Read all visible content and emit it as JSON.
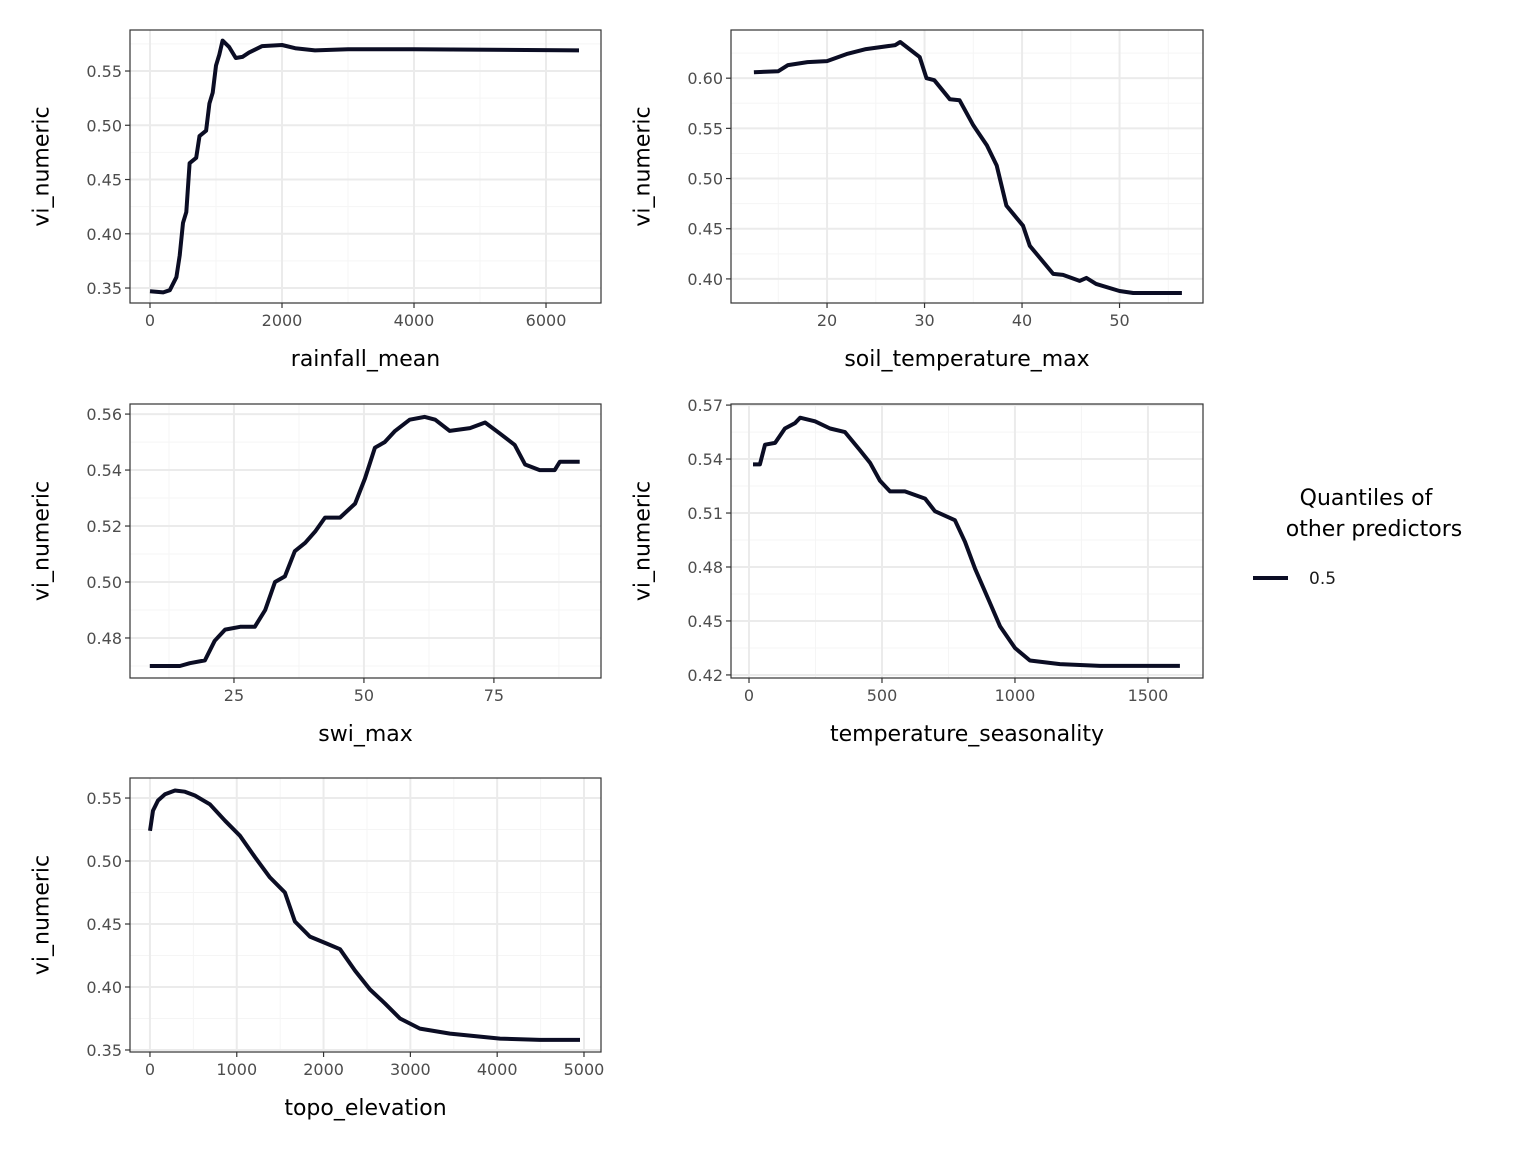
{
  "chart_data": [
    {
      "type": "line",
      "xlabel": "rainfall_mean",
      "ylabel": "vi_numeric",
      "xlim": [
        -303,
        6833
      ],
      "ylim": [
        0.3362,
        0.5878
      ],
      "xticks": [
        0,
        2000,
        4000,
        6000
      ],
      "xtick_labels": [
        "0",
        "2000",
        "4000",
        "6000"
      ],
      "yticks": [
        0.35,
        0.4,
        0.45,
        0.5,
        0.55
      ],
      "ytick_labels": [
        "0.35",
        "0.40",
        "0.45",
        "0.50",
        "0.55"
      ],
      "x": [
        0,
        200,
        300,
        400,
        450,
        500,
        550,
        600,
        700,
        750,
        850,
        900,
        950,
        1000,
        1050,
        1100,
        1200,
        1300,
        1400,
        1500,
        1700,
        2000,
        2200,
        2500,
        3000,
        4000,
        6500
      ],
      "y": [
        0.347,
        0.346,
        0.348,
        0.36,
        0.38,
        0.41,
        0.42,
        0.465,
        0.47,
        0.49,
        0.495,
        0.52,
        0.53,
        0.555,
        0.565,
        0.578,
        0.572,
        0.562,
        0.563,
        0.567,
        0.573,
        0.574,
        0.571,
        0.569,
        0.57,
        0.57,
        0.569
      ]
    },
    {
      "type": "line",
      "xlabel": "soil_temperature_max",
      "ylabel": "vi_numeric",
      "xlim": [
        10.15,
        58.56
      ],
      "ylim": [
        0.376,
        0.648
      ],
      "xticks": [
        20,
        30,
        40,
        50
      ],
      "xtick_labels": [
        "20",
        "30",
        "40",
        "50"
      ],
      "yticks": [
        0.4,
        0.45,
        0.5,
        0.55,
        0.6
      ],
      "ytick_labels": [
        "0.40",
        "0.45",
        "0.50",
        "0.55",
        "0.60"
      ],
      "x": [
        12.5,
        15,
        16,
        18,
        20,
        22,
        24,
        27,
        27.5,
        29.5,
        30.2,
        31,
        32.6,
        33.6,
        35,
        36.4,
        37.4,
        38.4,
        40.1,
        40.8,
        43.2,
        44.2,
        45.9,
        46.6,
        47.6,
        50,
        51.4,
        56.4
      ],
      "y": [
        0.606,
        0.607,
        0.613,
        0.616,
        0.617,
        0.624,
        0.629,
        0.633,
        0.636,
        0.621,
        0.6,
        0.598,
        0.579,
        0.578,
        0.553,
        0.533,
        0.513,
        0.473,
        0.453,
        0.433,
        0.405,
        0.404,
        0.398,
        0.401,
        0.395,
        0.388,
        0.386,
        0.386
      ]
    },
    {
      "type": "line",
      "xlabel": "swi_max",
      "ylabel": "vi_numeric",
      "xlim": [
        5,
        95.6
      ],
      "ylim": [
        0.4657,
        0.5636
      ],
      "xticks": [
        25,
        50,
        75
      ],
      "xtick_labels": [
        "25",
        "50",
        "75"
      ],
      "yticks": [
        0.48,
        0.5,
        0.52,
        0.54,
        0.56
      ],
      "ytick_labels": [
        "0.48",
        "0.50",
        "0.52",
        "0.54",
        "0.56"
      ],
      "x": [
        8.8,
        14.6,
        16.5,
        19.4,
        21.3,
        23.3,
        26.2,
        29,
        31,
        32.9,
        34.8,
        36.7,
        38.7,
        40.6,
        42.5,
        45.4,
        48.3,
        50.2,
        52.1,
        54,
        56,
        58.8,
        61.7,
        63.7,
        66.5,
        70.4,
        73.3,
        76.2,
        79,
        81,
        83.8,
        86.7,
        87.7,
        91.5
      ],
      "y": [
        0.47,
        0.47,
        0.471,
        0.472,
        0.479,
        0.483,
        0.484,
        0.484,
        0.49,
        0.5,
        0.502,
        0.511,
        0.514,
        0.518,
        0.523,
        0.523,
        0.528,
        0.537,
        0.548,
        0.55,
        0.554,
        0.558,
        0.559,
        0.558,
        0.554,
        0.555,
        0.557,
        0.553,
        0.549,
        0.542,
        0.54,
        0.54,
        0.543,
        0.543
      ]
    },
    {
      "type": "line",
      "xlabel": "temperature_seasonality",
      "ylabel": "vi_numeric",
      "xlim": [
        -67.7,
        1707
      ],
      "ylim": [
        0.4183,
        0.5706
      ],
      "xticks": [
        0,
        500,
        1000,
        1500
      ],
      "xtick_labels": [
        "0",
        "500",
        "1000",
        "1500"
      ],
      "yticks": [
        0.42,
        0.45,
        0.48,
        0.51,
        0.54,
        0.57
      ],
      "ytick_labels": [
        "0.42",
        "0.45",
        "0.48",
        "0.51",
        "0.54",
        "0.57"
      ],
      "x": [
        15,
        41,
        60,
        98,
        135,
        173,
        192,
        248,
        305,
        361,
        417,
        455,
        492,
        530,
        586,
        662,
        699,
        774,
        812,
        850,
        906,
        944,
        1000,
        1056,
        1169,
        1320,
        1508,
        1620
      ],
      "y": [
        0.537,
        0.537,
        0.548,
        0.549,
        0.557,
        0.56,
        0.563,
        0.561,
        0.557,
        0.555,
        0.545,
        0.538,
        0.528,
        0.522,
        0.522,
        0.518,
        0.511,
        0.506,
        0.494,
        0.479,
        0.46,
        0.447,
        0.435,
        0.428,
        0.426,
        0.425,
        0.425,
        0.425
      ]
    },
    {
      "type": "line",
      "xlabel": "topo_elevation",
      "ylabel": "vi_numeric",
      "xlim": [
        -230,
        5196
      ],
      "ylim": [
        0.3484,
        0.5659
      ],
      "xticks": [
        0,
        1000,
        2000,
        3000,
        4000,
        5000
      ],
      "xtick_labels": [
        "0",
        "1000",
        "2000",
        "3000",
        "4000",
        "5000"
      ],
      "yticks": [
        0.35,
        0.4,
        0.45,
        0.5,
        0.55
      ],
      "ytick_labels": [
        "0.35",
        "0.40",
        "0.45",
        "0.50",
        "0.55"
      ],
      "x": [
        0,
        35,
        92,
        173,
        288,
        403,
        518,
        691,
        864,
        1037,
        1210,
        1382,
        1555,
        1670,
        1843,
        2016,
        2189,
        2362,
        2535,
        2707,
        2880,
        3110,
        3456,
        4032,
        4493,
        4954
      ],
      "y": [
        0.524,
        0.54,
        0.548,
        0.553,
        0.556,
        0.555,
        0.552,
        0.545,
        0.532,
        0.52,
        0.503,
        0.487,
        0.475,
        0.452,
        0.44,
        0.435,
        0.43,
        0.413,
        0.398,
        0.387,
        0.375,
        0.367,
        0.363,
        0.359,
        0.358,
        0.358
      ]
    }
  ],
  "legend": {
    "title_line1": "Quantiles of",
    "title_line2": "other predictors",
    "entries": [
      {
        "label": "0.5",
        "color": "#0b0d24"
      }
    ],
    "placement": "right"
  },
  "colors": {
    "line": "#0b0d24",
    "grid_major": "#ebebeb",
    "grid_minor": "#f5f5f5",
    "border": "#333333"
  }
}
